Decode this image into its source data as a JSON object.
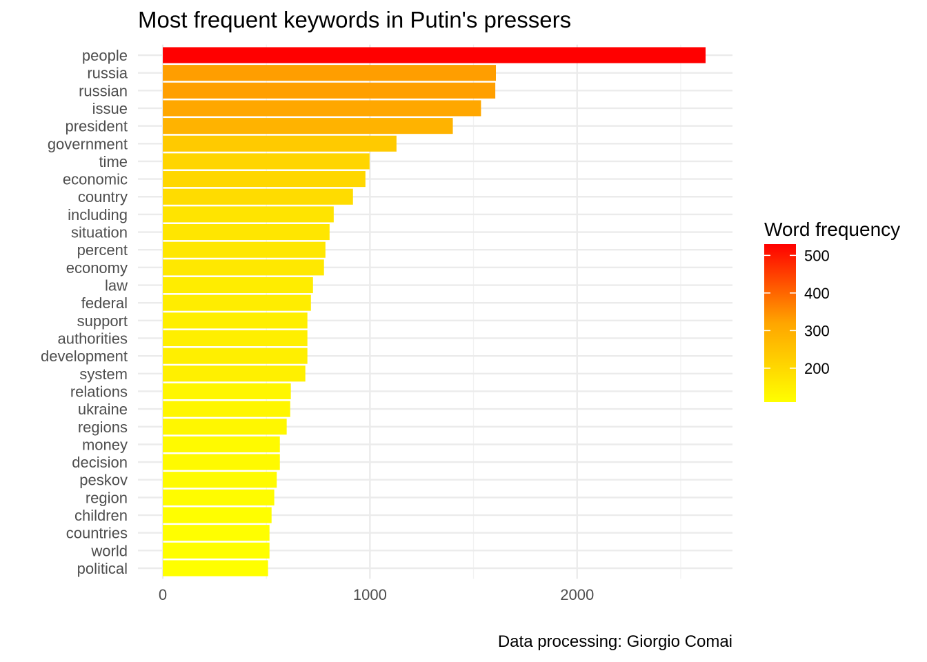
{
  "chart_data": {
    "type": "bar",
    "orientation": "horizontal",
    "title": "Most frequent keywords in Putin's pressers",
    "xlabel": "",
    "ylabel": "",
    "caption": "Data processing:  Giorgio Comai",
    "categories": [
      "people",
      "russia",
      "russian",
      "issue",
      "president",
      "government",
      "time",
      "economic",
      "country",
      "including",
      "situation",
      "percent",
      "economy",
      "law",
      "federal",
      "support",
      "authorities",
      "development",
      "system",
      "relations",
      "ukraine",
      "regions",
      "money",
      "decision",
      "peskov",
      "region",
      "children",
      "countries",
      "world",
      "political"
    ],
    "values": [
      2620,
      1608,
      1605,
      1536,
      1400,
      1128,
      998,
      978,
      918,
      825,
      805,
      785,
      778,
      725,
      715,
      698,
      698,
      698,
      688,
      618,
      615,
      598,
      565,
      565,
      550,
      538,
      525,
      515,
      515,
      508
    ],
    "xlim": [
      -120,
      2750
    ],
    "xticks": [
      0,
      1000,
      2000
    ],
    "grid": true,
    "legend": {
      "title": "Word frequency",
      "position": "right",
      "ticks": [
        500,
        400,
        300,
        200
      ],
      "range": [
        110,
        530
      ],
      "colors": {
        "low": "#ffff00",
        "mid": "#ffa500",
        "high": "#ff0000"
      }
    }
  }
}
